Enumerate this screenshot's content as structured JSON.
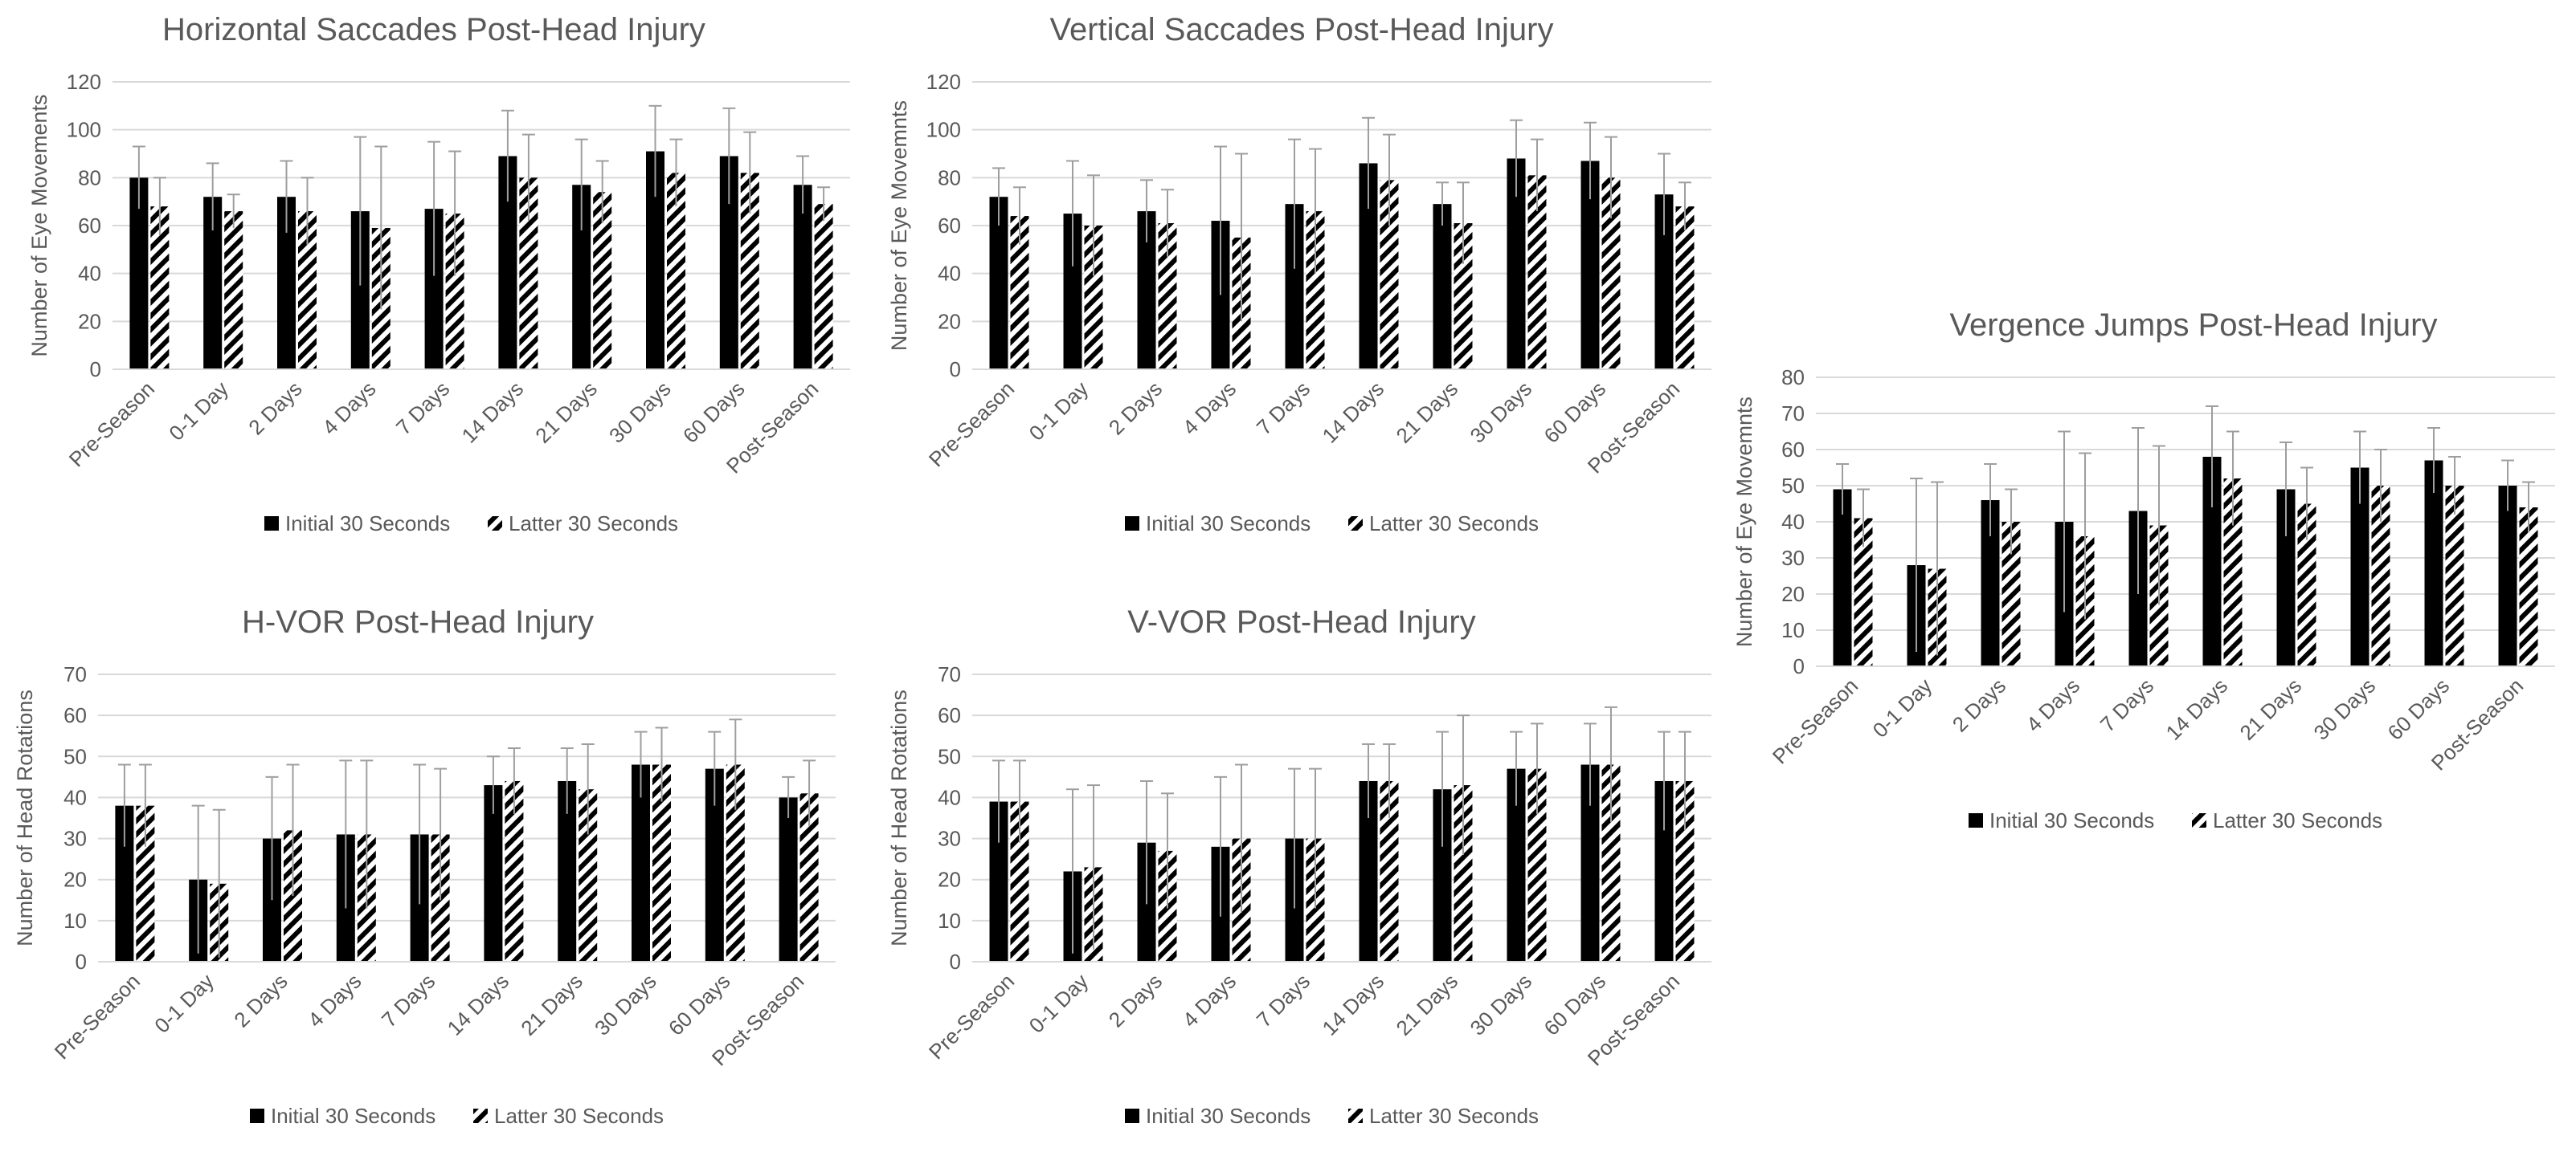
{
  "legend": {
    "initial": "Initial 30 Seconds",
    "latter": "Latter 30 Seconds"
  },
  "categories": [
    "Pre-Season",
    "0-1 Day",
    "2 Days",
    "4 Days",
    "7 Days",
    "14 Days",
    "21 Days",
    "30 Days",
    "60 Days",
    "Post-Season"
  ],
  "colors": {
    "bar": "#000000",
    "grid": "#d9d9d9",
    "text": "#595959",
    "error": "#9e9e9e"
  },
  "chart_data": [
    {
      "type": "bar",
      "title": "Horizontal Saccades Post-Head Injury",
      "ylabel": "Number of Eye Movements",
      "xlabel": "",
      "ylim": [
        0,
        120
      ],
      "yticks": [
        0,
        20,
        40,
        60,
        80,
        100,
        120
      ],
      "series": [
        {
          "name": "Initial 30 Seconds",
          "values": [
            80,
            72,
            72,
            66,
            67,
            89,
            77,
            91,
            89,
            77
          ],
          "errors": [
            13,
            14,
            15,
            31,
            28,
            19,
            19,
            19,
            20,
            12
          ]
        },
        {
          "name": "Latter 30 Seconds",
          "values": [
            68,
            66,
            66,
            59,
            65,
            80,
            74,
            82,
            82,
            69
          ],
          "errors": [
            12,
            7,
            14,
            34,
            26,
            18,
            13,
            14,
            17,
            7
          ]
        }
      ]
    },
    {
      "type": "bar",
      "title": "Vertical Saccades Post-Head Injury",
      "ylabel": "Number of Eye Movemnts",
      "xlabel": "",
      "ylim": [
        0,
        120
      ],
      "yticks": [
        0,
        20,
        40,
        60,
        80,
        100,
        120
      ],
      "series": [
        {
          "name": "Initial 30 Seconds",
          "values": [
            72,
            65,
            66,
            62,
            69,
            86,
            69,
            88,
            87,
            73
          ],
          "errors": [
            12,
            22,
            13,
            31,
            27,
            19,
            9,
            16,
            16,
            17
          ]
        },
        {
          "name": "Latter 30 Seconds",
          "values": [
            64,
            60,
            61,
            55,
            66,
            79,
            61,
            81,
            80,
            68
          ],
          "errors": [
            12,
            21,
            14,
            35,
            26,
            19,
            17,
            15,
            17,
            10
          ]
        }
      ]
    },
    {
      "type": "bar",
      "title": "Vergence Jumps Post-Head Injury",
      "ylabel": "Number of Eye Movemnts",
      "xlabel": "",
      "ylim": [
        0,
        80
      ],
      "yticks": [
        0,
        10,
        20,
        30,
        40,
        50,
        60,
        70,
        80
      ],
      "series": [
        {
          "name": "Initial 30 Seconds",
          "values": [
            49,
            28,
            46,
            40,
            43,
            58,
            49,
            55,
            57,
            50
          ],
          "errors": [
            7,
            24,
            10,
            25,
            23,
            14,
            13,
            10,
            9,
            7
          ]
        },
        {
          "name": "Latter 30 Seconds",
          "values": [
            41,
            27,
            40,
            36,
            39,
            52,
            45,
            50,
            50,
            44
          ],
          "errors": [
            8,
            24,
            9,
            23,
            22,
            13,
            10,
            10,
            8,
            7
          ]
        }
      ]
    },
    {
      "type": "bar",
      "title": "H-VOR Post-Head Injury",
      "ylabel": "Number of Head Rotations",
      "xlabel": "",
      "ylim": [
        0,
        70
      ],
      "yticks": [
        0,
        10,
        20,
        30,
        40,
        50,
        60,
        70
      ],
      "series": [
        {
          "name": "Initial 30 Seconds",
          "values": [
            38,
            20,
            30,
            31,
            31,
            43,
            44,
            48,
            47,
            40
          ],
          "errors": [
            10,
            18,
            15,
            18,
            17,
            7,
            8,
            8,
            9,
            5
          ]
        },
        {
          "name": "Latter 30 Seconds",
          "values": [
            38,
            19,
            32,
            31,
            31,
            44,
            42,
            48,
            48,
            41
          ],
          "errors": [
            10,
            18,
            16,
            18,
            16,
            8,
            11,
            9,
            11,
            8
          ]
        }
      ]
    },
    {
      "type": "bar",
      "title": "V-VOR Post-Head Injury",
      "ylabel": "Number of Head Rotations",
      "xlabel": "",
      "ylim": [
        0,
        70
      ],
      "yticks": [
        0,
        10,
        20,
        30,
        40,
        50,
        60,
        70
      ],
      "series": [
        {
          "name": "Initial 30 Seconds",
          "values": [
            39,
            22,
            29,
            28,
            30,
            44,
            42,
            47,
            48,
            44
          ],
          "errors": [
            10,
            20,
            15,
            17,
            17,
            9,
            14,
            9,
            10,
            12
          ]
        },
        {
          "name": "Latter 30 Seconds",
          "values": [
            39,
            23,
            27,
            30,
            30,
            44,
            43,
            47,
            48,
            44
          ],
          "errors": [
            10,
            20,
            14,
            18,
            17,
            9,
            17,
            11,
            14,
            12
          ]
        }
      ]
    }
  ]
}
